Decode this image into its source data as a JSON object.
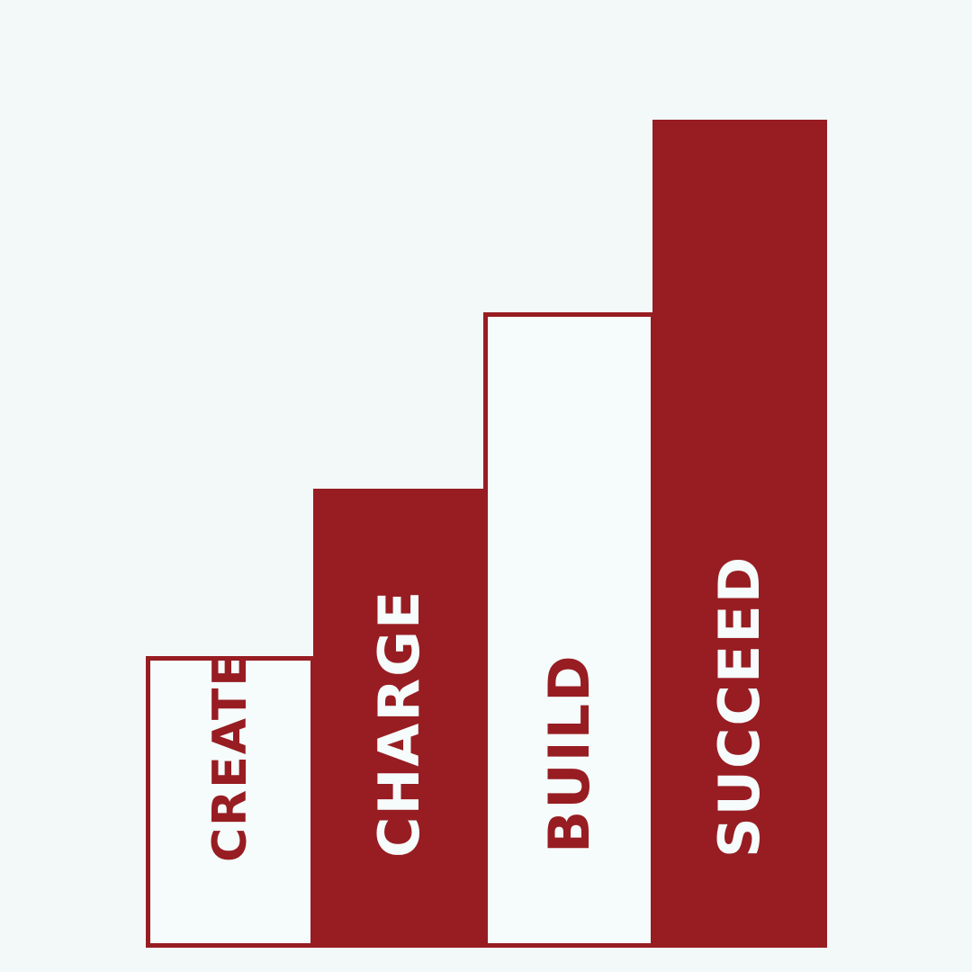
{
  "colors": {
    "background": "#f3f8f8",
    "accent": "#971d22",
    "light": "#f6fbfb"
  },
  "steps": [
    {
      "label": "CREATE",
      "style": "outline"
    },
    {
      "label": "CHARGE",
      "style": "filled"
    },
    {
      "label": "BUILD",
      "style": "outline"
    },
    {
      "label": "SUCCEED",
      "style": "filled"
    }
  ]
}
